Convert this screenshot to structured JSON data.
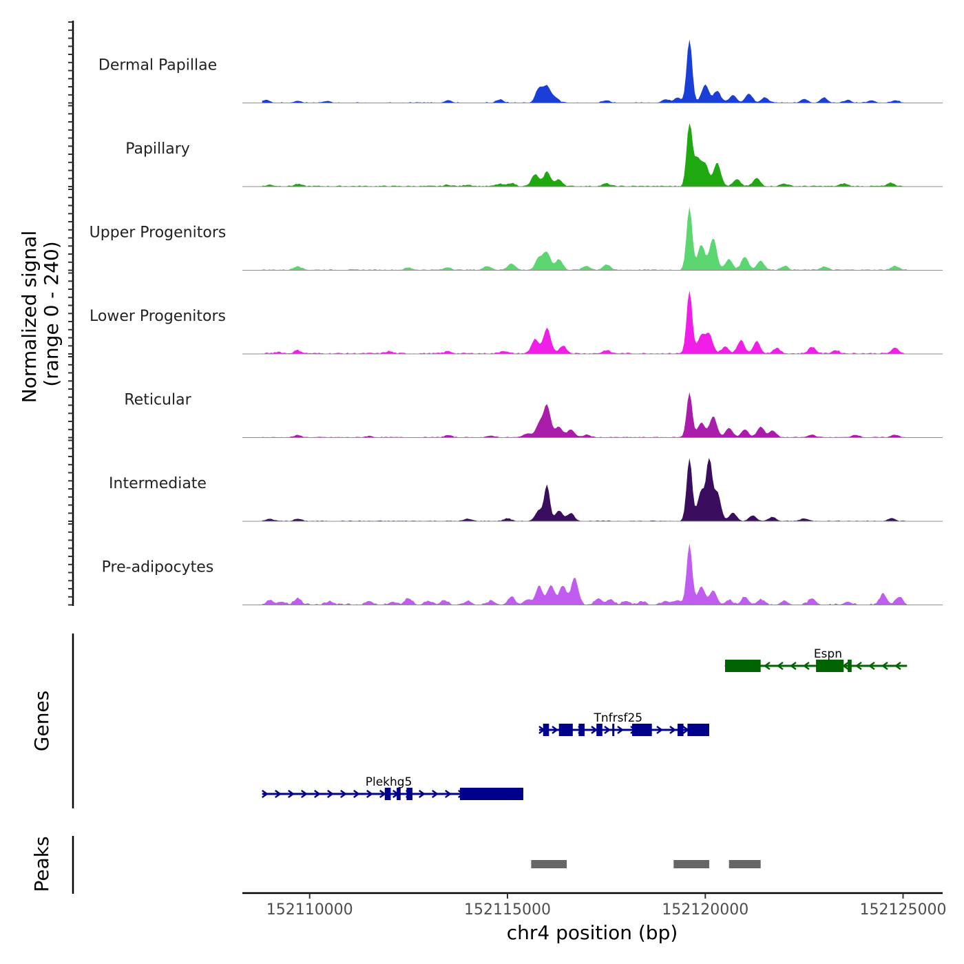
{
  "chart_data": {
    "type": "area",
    "title": "",
    "ylabel_line1": "Normalized signal",
    "ylabel_line2": "(range 0 - 240)",
    "ylim": [
      0,
      240
    ],
    "xlabel": "chr4 position (bp)",
    "xlim": [
      152108300,
      152126000
    ],
    "xticks": [
      {
        "value": 152110000,
        "label": "152110000"
      },
      {
        "value": 152115000,
        "label": "152115000"
      },
      {
        "value": 152120000,
        "label": "152120000"
      },
      {
        "value": 152125000,
        "label": "152125000"
      }
    ],
    "signal_start": 152108800,
    "signal_end": 152125100,
    "base_noise": 18,
    "tracks": [
      {
        "name": "Dermal Papillae",
        "color": "#1a3fd6",
        "noise": 0.05,
        "sparse": true,
        "peaks": [
          [
            152108900,
            12
          ],
          [
            152109700,
            8
          ],
          [
            152110400,
            6
          ],
          [
            152113500,
            10
          ],
          [
            152114800,
            12
          ],
          [
            152115800,
            55
          ],
          [
            152116000,
            60
          ],
          [
            152116200,
            20
          ],
          [
            152117500,
            10
          ],
          [
            152119000,
            14
          ],
          [
            152119300,
            20
          ],
          [
            152119600,
            240
          ],
          [
            152120000,
            70
          ],
          [
            152120300,
            45
          ],
          [
            152120700,
            30
          ],
          [
            152121100,
            35
          ],
          [
            152121500,
            20
          ],
          [
            152122500,
            15
          ],
          [
            152123000,
            20
          ],
          [
            152123600,
            10
          ],
          [
            152124200,
            10
          ],
          [
            152124800,
            10
          ]
        ]
      },
      {
        "name": "Papillary",
        "color": "#1fa80f",
        "noise": 0.06,
        "sparse": false,
        "peaks": [
          [
            152109000,
            5
          ],
          [
            152109700,
            8
          ],
          [
            152113500,
            5
          ],
          [
            152114000,
            6
          ],
          [
            152114800,
            8
          ],
          [
            152115100,
            12
          ],
          [
            152115700,
            45
          ],
          [
            152116000,
            55
          ],
          [
            152116300,
            25
          ],
          [
            152117500,
            10
          ],
          [
            152119600,
            240
          ],
          [
            152119800,
            100
          ],
          [
            152120000,
            80
          ],
          [
            152120300,
            90
          ],
          [
            152120800,
            25
          ],
          [
            152121300,
            30
          ],
          [
            152122000,
            10
          ],
          [
            152123500,
            10
          ],
          [
            152124700,
            12
          ]
        ]
      },
      {
        "name": "Upper Progenitors",
        "color": "#5bd670",
        "noise": 0.06,
        "sparse": false,
        "peaks": [
          [
            152109700,
            15
          ],
          [
            152112500,
            8
          ],
          [
            152113500,
            10
          ],
          [
            152114500,
            15
          ],
          [
            152115100,
            25
          ],
          [
            152115800,
            45
          ],
          [
            152116000,
            65
          ],
          [
            152116300,
            40
          ],
          [
            152117000,
            15
          ],
          [
            152117500,
            20
          ],
          [
            152119600,
            240
          ],
          [
            152119900,
            95
          ],
          [
            152120200,
            120
          ],
          [
            152120600,
            40
          ],
          [
            152121000,
            50
          ],
          [
            152121400,
            35
          ],
          [
            152122000,
            15
          ],
          [
            152123000,
            12
          ],
          [
            152124800,
            15
          ]
        ]
      },
      {
        "name": "Lower Progenitors",
        "color": "#f01ee6",
        "noise": 0.07,
        "sparse": false,
        "peaks": [
          [
            152109200,
            6
          ],
          [
            152109700,
            12
          ],
          [
            152112000,
            8
          ],
          [
            152113500,
            8
          ],
          [
            152114900,
            10
          ],
          [
            152115700,
            55
          ],
          [
            152116000,
            95
          ],
          [
            152116400,
            30
          ],
          [
            152117500,
            12
          ],
          [
            152119600,
            240
          ],
          [
            152119900,
            65
          ],
          [
            152120100,
            70
          ],
          [
            152120500,
            25
          ],
          [
            152120900,
            50
          ],
          [
            152121300,
            45
          ],
          [
            152121800,
            20
          ],
          [
            152122700,
            25
          ],
          [
            152123300,
            12
          ],
          [
            152124800,
            20
          ]
        ]
      },
      {
        "name": "Reticular",
        "color": "#aa1caa",
        "noise": 0.04,
        "sparse": false,
        "peaks": [
          [
            152109700,
            8
          ],
          [
            152111500,
            5
          ],
          [
            152113500,
            8
          ],
          [
            152114600,
            6
          ],
          [
            152115500,
            15
          ],
          [
            152115800,
            50
          ],
          [
            152116000,
            120
          ],
          [
            152116300,
            40
          ],
          [
            152116600,
            30
          ],
          [
            152117000,
            10
          ],
          [
            152119600,
            170
          ],
          [
            152119900,
            55
          ],
          [
            152120200,
            80
          ],
          [
            152120600,
            35
          ],
          [
            152121000,
            30
          ],
          [
            152121400,
            40
          ],
          [
            152121700,
            25
          ],
          [
            152122700,
            10
          ],
          [
            152123800,
            10
          ],
          [
            152124800,
            10
          ]
        ]
      },
      {
        "name": "Intermediate",
        "color": "#3a0d5e",
        "noise": 0.04,
        "sparse": false,
        "peaks": [
          [
            152109000,
            8
          ],
          [
            152109700,
            8
          ],
          [
            152114000,
            8
          ],
          [
            152115000,
            10
          ],
          [
            152115800,
            40
          ],
          [
            152116000,
            135
          ],
          [
            152116300,
            40
          ],
          [
            152116600,
            30
          ],
          [
            152119600,
            240
          ],
          [
            152119900,
            115
          ],
          [
            152120100,
            230
          ],
          [
            152120300,
            110
          ],
          [
            152120700,
            30
          ],
          [
            152121200,
            20
          ],
          [
            152121700,
            15
          ],
          [
            152122500,
            10
          ],
          [
            152124700,
            10
          ]
        ]
      },
      {
        "name": "Pre-adipocytes",
        "color": "#c05cf0",
        "noise": 0.08,
        "sparse": true,
        "peaks": [
          [
            152109000,
            18
          ],
          [
            152109300,
            12
          ],
          [
            152109700,
            25
          ],
          [
            152110500,
            12
          ],
          [
            152111500,
            15
          ],
          [
            152112100,
            12
          ],
          [
            152112500,
            25
          ],
          [
            152113000,
            15
          ],
          [
            152113400,
            18
          ],
          [
            152114000,
            15
          ],
          [
            152114600,
            15
          ],
          [
            152115100,
            30
          ],
          [
            152115500,
            20
          ],
          [
            152115800,
            70
          ],
          [
            152116100,
            75
          ],
          [
            152116400,
            70
          ],
          [
            152116700,
            100
          ],
          [
            152117300,
            25
          ],
          [
            152117600,
            20
          ],
          [
            152118000,
            15
          ],
          [
            152118400,
            12
          ],
          [
            152119000,
            15
          ],
          [
            152119300,
            18
          ],
          [
            152119600,
            230
          ],
          [
            152119900,
            70
          ],
          [
            152120200,
            55
          ],
          [
            152120600,
            18
          ],
          [
            152121000,
            30
          ],
          [
            152121400,
            20
          ],
          [
            152122000,
            15
          ],
          [
            152122700,
            25
          ],
          [
            152123600,
            12
          ],
          [
            152124500,
            40
          ],
          [
            152124900,
            30
          ]
        ]
      }
    ],
    "genes_label": "Genes",
    "genes": [
      {
        "name": "Espn",
        "strand": "-",
        "color": "#006400",
        "start": 152120500,
        "end": 152125100,
        "label_pos": 152123100,
        "exons": [
          [
            152120500,
            152121400
          ],
          [
            152122800,
            152123500
          ],
          [
            152123600,
            152123700
          ]
        ]
      },
      {
        "name": "Tnfrsf25",
        "strand": "+",
        "color": "#00008b",
        "start": 152115800,
        "end": 152120100,
        "label_pos": 152117800,
        "exons": [
          [
            152115900,
            152116050
          ],
          [
            152116300,
            152116650
          ],
          [
            152116800,
            152116950
          ],
          [
            152117250,
            152117400
          ],
          [
            152117650,
            152117700
          ],
          [
            152118150,
            152118650
          ],
          [
            152119300,
            152119450
          ],
          [
            152119550,
            152120100
          ]
        ]
      },
      {
        "name": "Plekhg5",
        "strand": "+",
        "color": "#00008b",
        "start": 152108800,
        "end": 152115400,
        "label_pos": 152112000,
        "exons": [
          [
            152111900,
            152112050
          ],
          [
            152112200,
            152112300
          ],
          [
            152112450,
            152112600
          ],
          [
            152113800,
            152114600
          ],
          [
            152114600,
            152115400
          ]
        ]
      }
    ],
    "peaks_label": "Peaks",
    "peaks": [
      [
        152115600,
        152116500
      ],
      [
        152119200,
        152120100
      ],
      [
        152120600,
        152121400
      ]
    ]
  }
}
